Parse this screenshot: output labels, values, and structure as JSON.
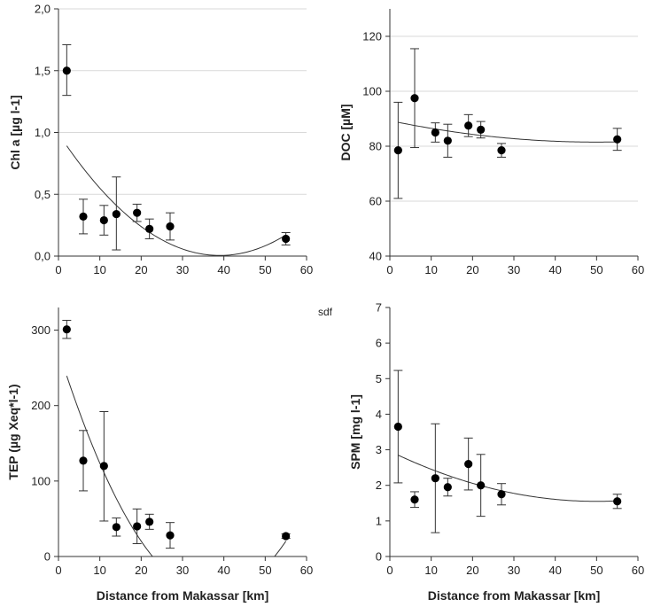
{
  "stray_text": "sdf",
  "chart_data": [
    {
      "type": "scatter",
      "id": "chl",
      "xlabel": "",
      "ylabel": "Chl a [µg l-1]",
      "xlim": [
        0,
        60
      ],
      "ylim": [
        0,
        2.0
      ],
      "xticks": [
        "0",
        "10",
        "20",
        "30",
        "40",
        "50",
        "60"
      ],
      "yticks": [
        {
          "value": 0.0,
          "label": "0,0"
        },
        {
          "value": 0.5,
          "label": "0,5"
        },
        {
          "value": 1.0,
          "label": "1,0"
        },
        {
          "value": 1.5,
          "label": "1,5"
        },
        {
          "value": 2.0,
          "label": "2,0"
        }
      ],
      "grid": true,
      "points": [
        {
          "x": 2,
          "y": 1.5,
          "err_lo": 0.2,
          "err_hi": 0.21
        },
        {
          "x": 6,
          "y": 0.32,
          "err_lo": 0.14,
          "err_hi": 0.14
        },
        {
          "x": 11,
          "y": 0.29,
          "err_lo": 0.12,
          "err_hi": 0.12
        },
        {
          "x": 14,
          "y": 0.34,
          "err_lo": 0.29,
          "err_hi": 0.3
        },
        {
          "x": 19,
          "y": 0.35,
          "err_lo": 0.07,
          "err_hi": 0.07
        },
        {
          "x": 22,
          "y": 0.22,
          "err_lo": 0.08,
          "err_hi": 0.08
        },
        {
          "x": 27,
          "y": 0.24,
          "err_lo": 0.11,
          "err_hi": 0.11
        },
        {
          "x": 55,
          "y": 0.14,
          "err_lo": 0.05,
          "err_hi": 0.05
        }
      ],
      "fit": {
        "type": "quadratic",
        "vertex_x": 39,
        "vertex_y": 0.005,
        "a": 0.000648,
        "x_range": [
          2,
          55
        ]
      }
    },
    {
      "type": "scatter",
      "id": "doc",
      "xlabel": "",
      "ylabel": "DOC [µM]",
      "xlim": [
        0,
        60
      ],
      "ylim": [
        40,
        130
      ],
      "xticks": [
        "0",
        "10",
        "20",
        "30",
        "40",
        "50",
        "60"
      ],
      "yticks": [
        {
          "value": 40,
          "label": "40"
        },
        {
          "value": 60,
          "label": "60"
        },
        {
          "value": 80,
          "label": "80"
        },
        {
          "value": 100,
          "label": "100"
        },
        {
          "value": 120,
          "label": "120"
        }
      ],
      "grid": true,
      "points": [
        {
          "x": 2,
          "y": 78.5,
          "err_lo": 17.5,
          "err_hi": 17.5
        },
        {
          "x": 6,
          "y": 97.5,
          "err_lo": 18,
          "err_hi": 18
        },
        {
          "x": 11,
          "y": 85,
          "err_lo": 3.5,
          "err_hi": 3.5
        },
        {
          "x": 14,
          "y": 82,
          "err_lo": 6,
          "err_hi": 6
        },
        {
          "x": 19,
          "y": 87.5,
          "err_lo": 4,
          "err_hi": 4
        },
        {
          "x": 22,
          "y": 86,
          "err_lo": 3,
          "err_hi": 3
        },
        {
          "x": 27,
          "y": 78.5,
          "err_lo": 2.5,
          "err_hi": 2.5
        },
        {
          "x": 55,
          "y": 82.5,
          "err_lo": 4,
          "err_hi": 4
        }
      ],
      "fit": {
        "type": "quadratic",
        "vertex_x": 50,
        "vertex_y": 81.5,
        "a": 0.003125,
        "x_range": [
          2,
          55
        ]
      }
    },
    {
      "type": "scatter",
      "id": "tep",
      "xlabel": "Distance from Makassar [km]",
      "ylabel": "TEP (µg Xeq*l-1)",
      "xlim": [
        0,
        60
      ],
      "ylim": [
        0,
        330
      ],
      "xticks": [
        "0",
        "10",
        "20",
        "30",
        "40",
        "50",
        "60"
      ],
      "yticks": [
        {
          "value": 0,
          "label": "0"
        },
        {
          "value": 100,
          "label": "100"
        },
        {
          "value": 200,
          "label": "200"
        },
        {
          "value": 300,
          "label": "300"
        }
      ],
      "grid": false,
      "points": [
        {
          "x": 2,
          "y": 301,
          "err_lo": 12,
          "err_hi": 12
        },
        {
          "x": 6,
          "y": 127,
          "err_lo": 40,
          "err_hi": 40
        },
        {
          "x": 11,
          "y": 120,
          "err_lo": 73,
          "err_hi": 72
        },
        {
          "x": 14,
          "y": 39,
          "err_lo": 12,
          "err_hi": 12
        },
        {
          "x": 19,
          "y": 40,
          "err_lo": 23,
          "err_hi": 23
        },
        {
          "x": 22,
          "y": 46,
          "err_lo": 10,
          "err_hi": 10
        },
        {
          "x": 27,
          "y": 28,
          "err_lo": 17,
          "err_hi": 17
        },
        {
          "x": 55,
          "y": 27,
          "err_lo": 3,
          "err_hi": 3
        }
      ],
      "fit": {
        "type": "quadratic",
        "vertex_x": 37.5,
        "vertex_y": -50,
        "a": 0.2296,
        "x_range": [
          2,
          55
        ]
      }
    },
    {
      "type": "scatter",
      "id": "spm",
      "xlabel": "Distance from Makassar [km]",
      "ylabel": "SPM [mg l-1]",
      "xlim": [
        0,
        60
      ],
      "ylim": [
        0,
        7
      ],
      "xticks": [
        "0",
        "10",
        "20",
        "30",
        "40",
        "50",
        "60"
      ],
      "yticks": [
        {
          "value": 0,
          "label": "0"
        },
        {
          "value": 1,
          "label": "1"
        },
        {
          "value": 2,
          "label": "2"
        },
        {
          "value": 3,
          "label": "3"
        },
        {
          "value": 4,
          "label": "4"
        },
        {
          "value": 5,
          "label": "5"
        },
        {
          "value": 6,
          "label": "6"
        },
        {
          "value": 7,
          "label": "7"
        }
      ],
      "grid": false,
      "points": [
        {
          "x": 2,
          "y": 3.65,
          "err_lo": 1.58,
          "err_hi": 1.58
        },
        {
          "x": 6,
          "y": 1.6,
          "err_lo": 0.22,
          "err_hi": 0.22
        },
        {
          "x": 11,
          "y": 2.2,
          "err_lo": 1.53,
          "err_hi": 1.53
        },
        {
          "x": 14,
          "y": 1.95,
          "err_lo": 0.25,
          "err_hi": 0.25
        },
        {
          "x": 19,
          "y": 2.6,
          "err_lo": 0.73,
          "err_hi": 0.73
        },
        {
          "x": 22,
          "y": 2.0,
          "err_lo": 0.87,
          "err_hi": 0.87
        },
        {
          "x": 27,
          "y": 1.75,
          "err_lo": 0.3,
          "err_hi": 0.3
        },
        {
          "x": 55,
          "y": 1.55,
          "err_lo": 0.2,
          "err_hi": 0.2
        }
      ],
      "fit": {
        "type": "quadratic",
        "vertex_x": 50,
        "vertex_y": 1.55,
        "a": 0.000564,
        "x_range": [
          2,
          55
        ]
      }
    }
  ]
}
